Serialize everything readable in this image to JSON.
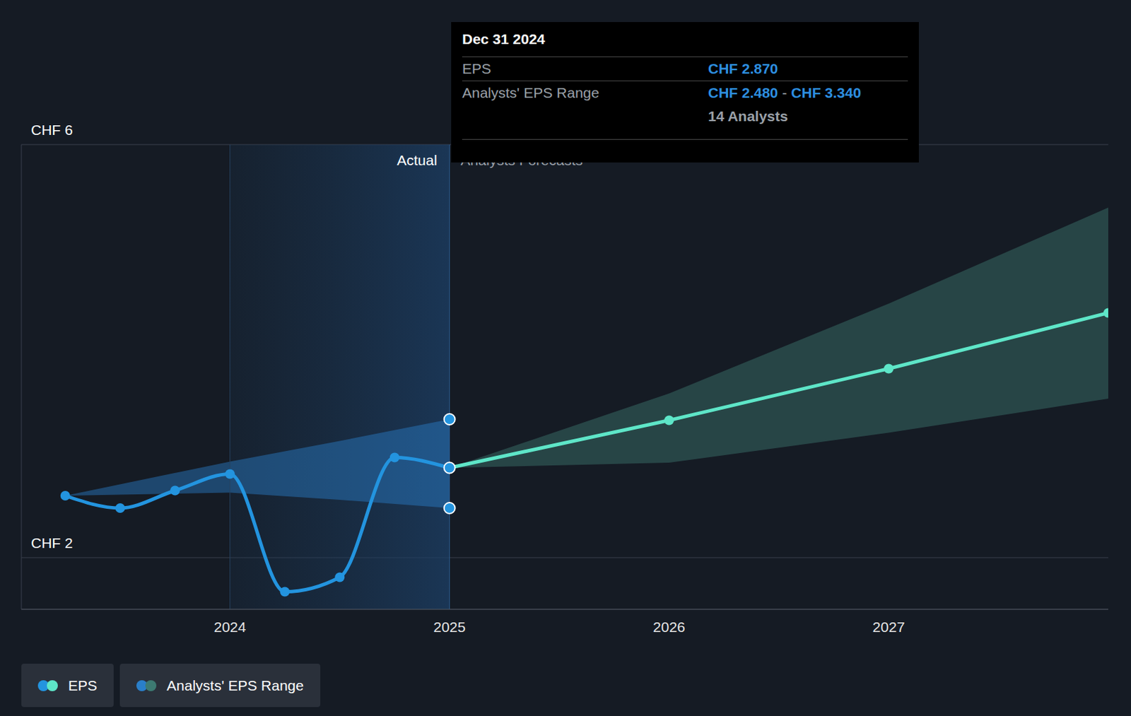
{
  "chart_data": {
    "type": "line",
    "x": [
      2023.25,
      2023.5,
      2023.75,
      2024,
      2024.25,
      2024.5,
      2024.75,
      2025,
      2026,
      2027,
      2028
    ],
    "series": [
      {
        "name": "EPS",
        "colors": [
          "#2394df",
          "#2394df",
          "#2394df",
          "#2394df",
          "#2394df",
          "#2394df",
          "#2394df",
          "#2394df",
          "#5ee6c8",
          "#5ee6c8",
          "#5ee6c8"
        ],
        "values": [
          2.6,
          2.48,
          2.65,
          2.81,
          1.67,
          1.81,
          2.97,
          2.87,
          3.33,
          3.83,
          4.37
        ]
      }
    ],
    "range": {
      "name": "Analysts' EPS Range",
      "x": [
        2023.25,
        2024,
        2024.5,
        2025,
        2025,
        2026,
        2027,
        2028
      ],
      "low": [
        2.6,
        2.63,
        2.56,
        2.48,
        2.87,
        2.92,
        3.21,
        3.54
      ],
      "high": [
        2.6,
        2.93,
        3.13,
        3.34,
        2.87,
        3.59,
        4.46,
        5.39
      ],
      "colors": [
        "#2a7fc9",
        "#2a7fc9",
        "#2a7fc9",
        "#2a7fc9",
        "#3d7a72",
        "#3d7a72",
        "#3d7a72",
        "#3d7a72"
      ]
    },
    "xlim": [
      2023.05,
      2028
    ],
    "xticks": [
      2024,
      2025,
      2026,
      2027
    ],
    "ylim": [
      1.5,
      6
    ],
    "yticks": [
      {
        "value": 2,
        "label": "CHF 2"
      },
      {
        "value": 6,
        "label": "CHF 6"
      }
    ],
    "grid": true,
    "shaded_x": [
      2024,
      2025
    ],
    "annotations": [
      {
        "text": "Actual",
        "x": 2025,
        "side": "left"
      },
      {
        "text": "Analysts Forecasts",
        "x": 2025,
        "side": "right"
      }
    ],
    "tooltip": {
      "date": "Dec 31 2024",
      "x": 2025,
      "eps": {
        "value": 2.87,
        "label": "CHF 2.870"
      },
      "range_low": {
        "value": 2.48,
        "label": "CHF 2.480"
      },
      "range_high": {
        "value": 3.34,
        "label": "CHF 3.340"
      },
      "separator": "-",
      "analysts": "14 Analysts"
    }
  }
}
